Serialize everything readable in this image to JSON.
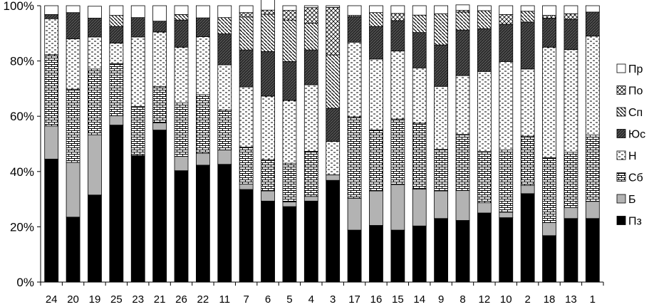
{
  "chart_data": {
    "type": "bar",
    "stacked": true,
    "percent": true,
    "ylim": [
      0,
      100
    ],
    "y_ticks": [
      "0%",
      "20%",
      "40%",
      "60%",
      "80%",
      "100%"
    ],
    "categories": [
      "24",
      "20",
      "19",
      "25",
      "23",
      "21",
      "26",
      "22",
      "11",
      "7",
      "6",
      "5",
      "4",
      "3",
      "17",
      "16",
      "15",
      "14",
      "9",
      "8",
      "12",
      "10",
      "2",
      "18",
      "13",
      "1"
    ],
    "legend_position": "right",
    "series": [
      {
        "name": "Пз",
        "pattern": "solid",
        "values": [
          44.5,
          23.5,
          31.5,
          56.8,
          45.8,
          55.0,
          40.3,
          42.3,
          42.6,
          33.5,
          29.3,
          27.3,
          29.3,
          36.8,
          18.8,
          20.5,
          18.8,
          20.3,
          23.0,
          22.3,
          25.0,
          23.3,
          32.0,
          16.8,
          23.0,
          23.0
        ]
      },
      {
        "name": "Б",
        "pattern": "gray",
        "values": [
          12.0,
          19.8,
          21.8,
          3.4,
          0.0,
          2.6,
          5.2,
          4.3,
          5.2,
          2.0,
          3.7,
          1.7,
          1.7,
          2.0,
          11.5,
          12.5,
          16.5,
          13.3,
          10.0,
          10.8,
          3.7,
          2.0,
          3.0,
          4.7,
          4.0,
          6.2
        ]
      },
      {
        "name": "Сб",
        "pattern": "brick",
        "values": [
          25.8,
          26.5,
          23.8,
          18.8,
          17.7,
          13.2,
          19.3,
          21.2,
          14.4,
          13.3,
          11.3,
          14.0,
          16.3,
          0.0,
          29.5,
          22.0,
          23.7,
          23.9,
          15.0,
          20.3,
          18.5,
          22.5,
          17.8,
          23.5,
          20.0,
          24.0
        ]
      },
      {
        "name": "Н",
        "pattern": "dash",
        "values": [
          13.0,
          18.2,
          11.6,
          7.5,
          25.2,
          19.7,
          20.2,
          21.0,
          16.4,
          21.8,
          23.0,
          22.7,
          24.1,
          12.1,
          27.0,
          25.7,
          24.6,
          20.0,
          22.8,
          21.3,
          29.0,
          32.0,
          24.3,
          40.0,
          37.1,
          35.8
        ]
      },
      {
        "name": "Юс",
        "pattern": "dark",
        "values": [
          1.5,
          9.5,
          6.8,
          6.0,
          7.0,
          3.9,
          9.8,
          6.8,
          11.2,
          13.4,
          16.1,
          14.1,
          12.6,
          12.0,
          9.2,
          11.8,
          11.0,
          12.8,
          15.0,
          16.5,
          15.5,
          13.5,
          17.0,
          10.5,
          11.0,
          8.7
        ]
      },
      {
        "name": "Сп",
        "pattern": "diag",
        "values": [
          0.0,
          0.0,
          0.0,
          4.0,
          0.0,
          0.0,
          2.0,
          0.0,
          5.9,
          11.9,
          13.5,
          15.0,
          9.7,
          19.3,
          0.0,
          5.0,
          0.0,
          6.3,
          11.3,
          6.5,
          6.5,
          0.0,
          3.9,
          0.0,
          0.0,
          0.0
        ]
      },
      {
        "name": "По",
        "pattern": "cross",
        "values": [
          0.0,
          0.0,
          0.0,
          0.0,
          0.0,
          0.0,
          0.0,
          0.0,
          0.0,
          1.6,
          1.5,
          3.5,
          5.6,
          17.2,
          0.5,
          0.0,
          2.6,
          0.0,
          0.0,
          0.6,
          0.0,
          3.5,
          0.0,
          1.0,
          2.0,
          0.0
        ]
      },
      {
        "name": "Пр",
        "pattern": "empty",
        "values": [
          3.2,
          2.5,
          4.3,
          3.5,
          4.3,
          5.6,
          3.2,
          4.4,
          4.3,
          2.5,
          4.0,
          1.7,
          0.7,
          0.6,
          3.5,
          2.5,
          2.8,
          3.4,
          2.9,
          2.0,
          1.8,
          3.2,
          2.0,
          3.5,
          2.9,
          2.3
        ]
      }
    ]
  }
}
